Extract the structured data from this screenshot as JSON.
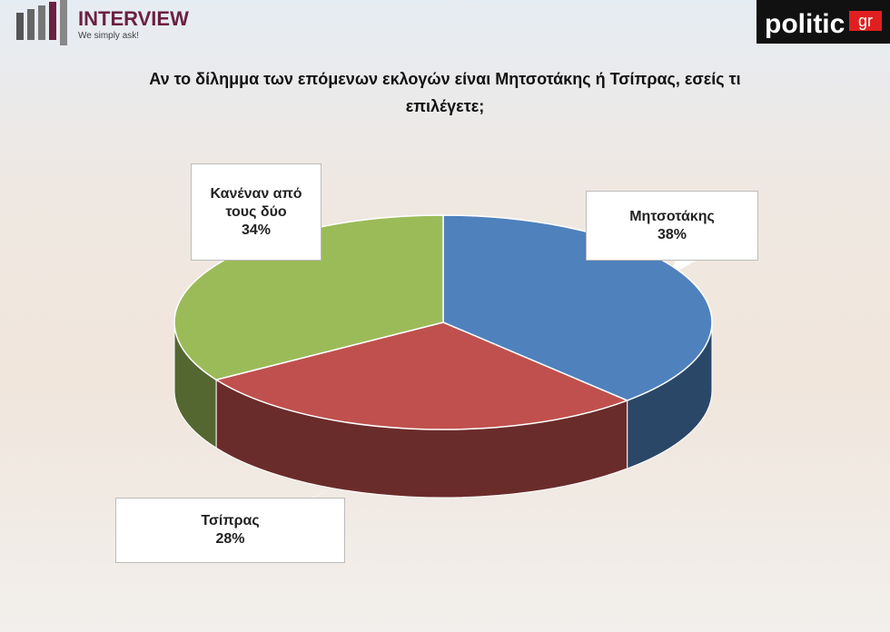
{
  "header": {
    "logo_left": "INTERVIEW",
    "tagline": "We simply ask!",
    "logo_right": "politic",
    "logo_right_suffix": "gr"
  },
  "chart_data": {
    "type": "pie",
    "title": "Αν το δίλημμα των επόμενων εκλογών είναι Μητσοτάκης ή Τσίπρας, εσείς τι επιλέγετε;",
    "categories": [
      "Μητσοτάκης",
      "Τσίπρας",
      "Κανέναν από τους δύο"
    ],
    "values": [
      38,
      28,
      34
    ],
    "value_labels": [
      "38%",
      "28%",
      "34%"
    ],
    "colors": [
      "#4f81bd",
      "#c0504d",
      "#9bbb59"
    ]
  }
}
